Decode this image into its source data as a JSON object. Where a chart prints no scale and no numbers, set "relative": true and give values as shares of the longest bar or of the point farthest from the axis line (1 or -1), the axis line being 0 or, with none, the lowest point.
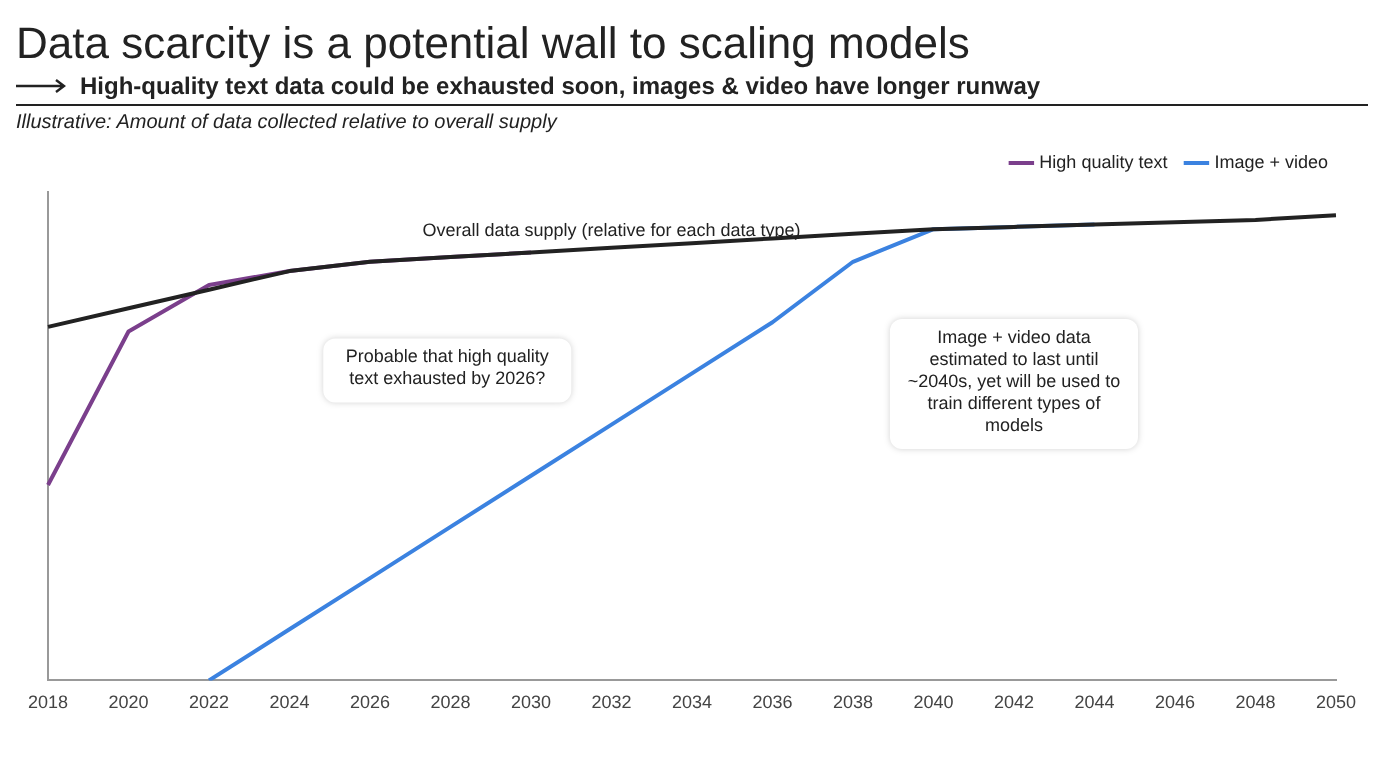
{
  "chart_data": {
    "type": "line",
    "title": "Data scarcity is a potential wall to scaling models",
    "subtitle": "High-quality text data could be exhausted soon, images & video have longer runway",
    "categories": [
      "2018",
      "2020",
      "2022",
      "2024",
      "2026",
      "2028",
      "2030",
      "2032",
      "2034",
      "2036",
      "2038",
      "2040",
      "2042",
      "2044",
      "2046",
      "2048",
      "2050"
    ],
    "relative": true,
    "legend": "top right",
    "grid": false,
    "marker": "none",
    "tick_labels": "x",
    "series": [
      {
        "color": "#222222",
        "values": [
          0.76,
          0.8,
          0.84,
          0.88,
          0.9,
          0.91,
          0.92,
          0.93,
          0.94,
          0.95,
          0.96,
          0.97,
          0.975,
          0.98,
          0.985,
          0.99,
          1
        ]
      },
      {
        "name": "High quality text",
        "color": "#7b3f8c",
        "values": [
          0.42,
          0.75,
          0.85,
          0.88,
          0.9,
          0.91,
          0.92,
          null,
          null,
          null,
          null,
          null,
          null,
          null,
          null,
          null,
          null
        ]
      },
      {
        "name": "Image + video",
        "color": "#3b82e0",
        "values": [
          null,
          null,
          0.0,
          0.11,
          0.22,
          0.33,
          0.44,
          0.55,
          0.66,
          0.77,
          0.9,
          0.97,
          0.975,
          0.98,
          null,
          null,
          null
        ]
      }
    ],
    "annotations": [
      "Illustrative: Amount of data collected relative to overall supply",
      {
        "text": "Overall data supply (relative for each data type)",
        "x": "2032",
        "y": 0.93
      },
      "Probable that high quality text exhausted by 2026?",
      "Image + video data estimated to last until ~2040s, yet will be used to train different types of models"
    ]
  }
}
